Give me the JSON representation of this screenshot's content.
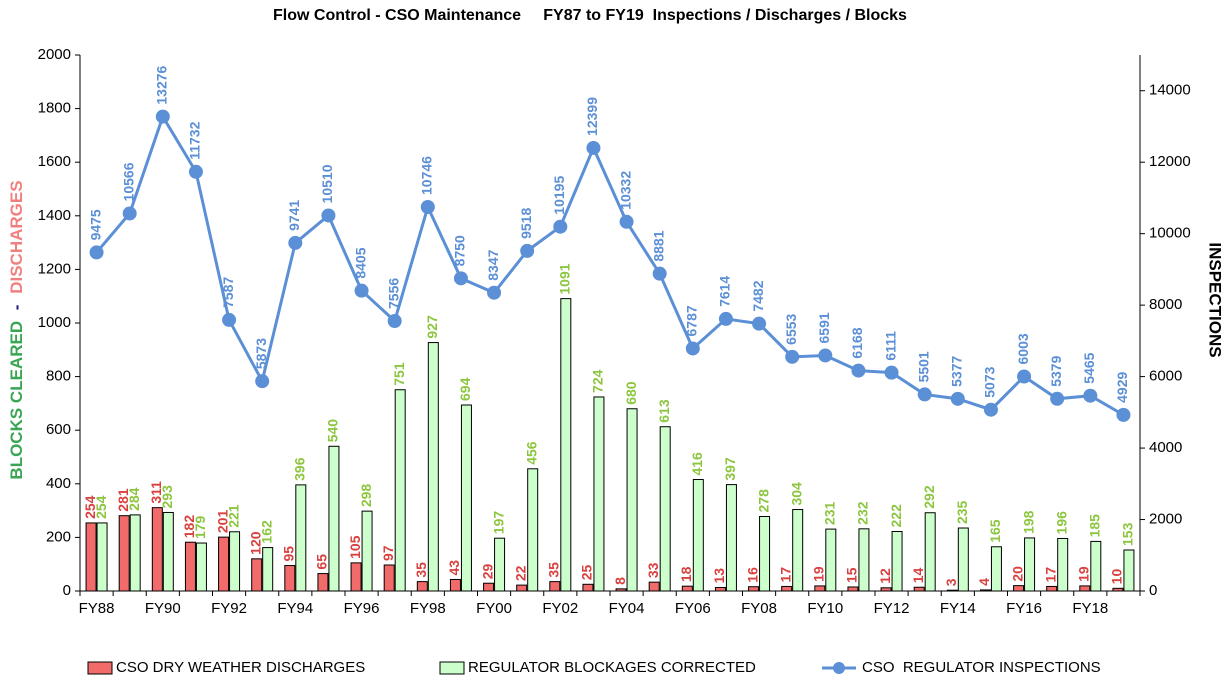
{
  "chart_data": {
    "type": "bar",
    "title": "Flow Control - CSO Maintenance     FY87 to FY19  Inspections / Discharges / Blocks",
    "ylabel": [
      "BLOCKS CLEARED",
      "-",
      "DISCHARGES"
    ],
    "ylabel_colors": [
      "#3aa655",
      "#1f1f7a",
      "#f08080"
    ],
    "y2label": "INSPECTIONS",
    "categories": [
      "FY88",
      null,
      "FY90",
      null,
      "FY92",
      null,
      "FY94",
      null,
      "FY96",
      null,
      "FY98",
      null,
      "FY00",
      null,
      "FY02",
      null,
      "FY04",
      null,
      "FY06",
      null,
      "FY08",
      null,
      "FY10",
      null,
      "FY12",
      null,
      "FY14",
      null,
      "FY16",
      null,
      "FY18",
      null
    ],
    "series": [
      {
        "name": "CSO DRY WEATHER DISCHARGES",
        "type": "bar",
        "color": "#f26b6b",
        "label_color": "#d9413f",
        "values": [
          254,
          281,
          311,
          182,
          201,
          120,
          95,
          65,
          105,
          97,
          35,
          43,
          29,
          22,
          35,
          25,
          8,
          33,
          18,
          13,
          16,
          17,
          19,
          15,
          12,
          14,
          3,
          4,
          20,
          17,
          19,
          10
        ]
      },
      {
        "name": "REGULATOR BLOCKAGES CORRECTED",
        "type": "bar",
        "color": "#ccffcc",
        "label_color": "#8cc63f",
        "values": [
          254,
          284,
          293,
          179,
          221,
          162,
          396,
          540,
          298,
          751,
          927,
          694,
          197,
          456,
          1091,
          724,
          680,
          613,
          416,
          397,
          278,
          304,
          231,
          232,
          222,
          292,
          235,
          165,
          198,
          196,
          185,
          153
        ]
      },
      {
        "name": "CSO  REGULATOR INSPECTIONS",
        "type": "line",
        "axis": "y2",
        "color": "#5b8fd6",
        "label_color": "#5b8fd6",
        "values": [
          9475,
          10566,
          13276,
          11732,
          7587,
          5873,
          9741,
          10510,
          8405,
          7556,
          10746,
          8750,
          8347,
          9518,
          10195,
          12399,
          10332,
          8881,
          6787,
          7614,
          7482,
          6553,
          6591,
          6168,
          6111,
          5501,
          5377,
          5073,
          6003,
          5379,
          5465,
          4929
        ]
      }
    ],
    "ylim": [
      0,
      2000
    ],
    "yticks": [
      0,
      200,
      400,
      600,
      800,
      1000,
      1200,
      1400,
      1600,
      1800,
      2000
    ],
    "y2lim": [
      0,
      15000
    ],
    "y2ticks": [
      0,
      2000,
      4000,
      6000,
      8000,
      10000,
      12000,
      14000
    ],
    "legend": "bottom",
    "grid": false
  }
}
